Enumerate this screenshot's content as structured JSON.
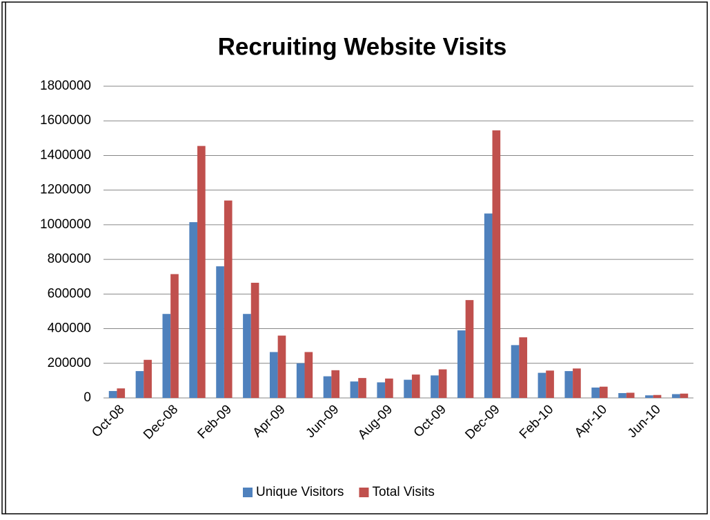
{
  "chart_data": {
    "type": "bar",
    "title": "Recruiting Website Visits",
    "categories": [
      "Oct-08",
      null,
      "Dec-08",
      null,
      "Feb-09",
      null,
      "Apr-09",
      null,
      "Jun-09",
      null,
      "Aug-09",
      null,
      "Oct-09",
      null,
      "Dec-09",
      null,
      "Feb-10",
      null,
      "Apr-10",
      null,
      "Jun-10",
      null
    ],
    "series": [
      {
        "name": "Unique Visitors",
        "color": "#4f81bd",
        "values": [
          40000,
          155000,
          485000,
          1015000,
          760000,
          485000,
          265000,
          200000,
          125000,
          95000,
          90000,
          105000,
          130000,
          390000,
          1065000,
          305000,
          145000,
          155000,
          60000,
          28000,
          15000,
          22000
        ]
      },
      {
        "name": "Total Visits",
        "color": "#c0504d",
        "values": [
          55000,
          220000,
          715000,
          1455000,
          1140000,
          665000,
          360000,
          265000,
          160000,
          115000,
          112000,
          135000,
          165000,
          565000,
          1545000,
          350000,
          158000,
          170000,
          65000,
          30000,
          17000,
          25000
        ]
      }
    ],
    "ylim": [
      0,
      1800000
    ],
    "yticks": [
      0,
      200000,
      400000,
      600000,
      800000,
      1000000,
      1200000,
      1400000,
      1600000,
      1800000
    ],
    "grid": true,
    "legend": "bottom"
  }
}
